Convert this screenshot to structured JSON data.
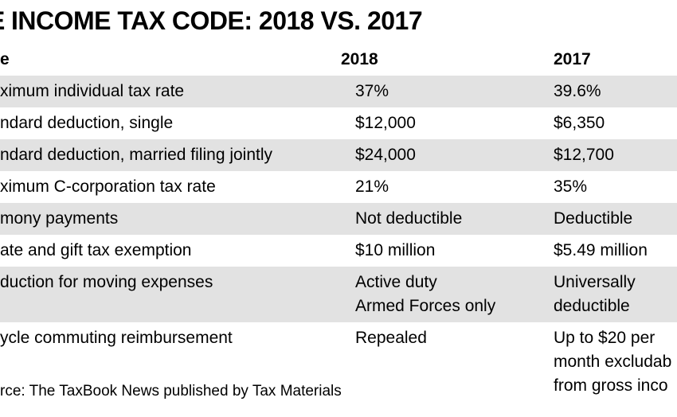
{
  "chart_data": {
    "type": "table",
    "title_clipped_prefix": "E",
    "title": "INCOME TAX CODE: 2018 VS. 2017",
    "columns": {
      "label": "e",
      "y2018": "2018",
      "y2017": "2017"
    },
    "rows": [
      {
        "label": "ximum individual tax rate",
        "y2018": "37%",
        "y2017": "39.6%"
      },
      {
        "label": "ndard deduction, single",
        "y2018": "$12,000",
        "y2017": "$6,350"
      },
      {
        "label": "ndard deduction, married filing jointly",
        "y2018": "$24,000",
        "y2017": "$12,700"
      },
      {
        "label": "ximum C-corporation tax rate",
        "y2018": "21%",
        "y2017": "35%"
      },
      {
        "label": "mony payments",
        "y2018": "Not deductible",
        "y2017": "Deductible"
      },
      {
        "label": "ate and gift tax exemption",
        "y2018": "$10 million",
        "y2017": "$5.49 million"
      },
      {
        "label": "duction for moving expenses",
        "y2018": "Active duty\nArmed Forces only",
        "y2017": "Universally\ndeductible"
      },
      {
        "label": "ycle commuting reimbursement",
        "y2018": "Repealed",
        "y2017": "Up to $20 per\nmonth excludab\nfrom gross inco"
      }
    ],
    "source": "rce: The TaxBook News published by Tax Materials"
  },
  "colors": {
    "stripe": "#e2e2e2",
    "text": "#000000",
    "background": "#ffffff"
  }
}
